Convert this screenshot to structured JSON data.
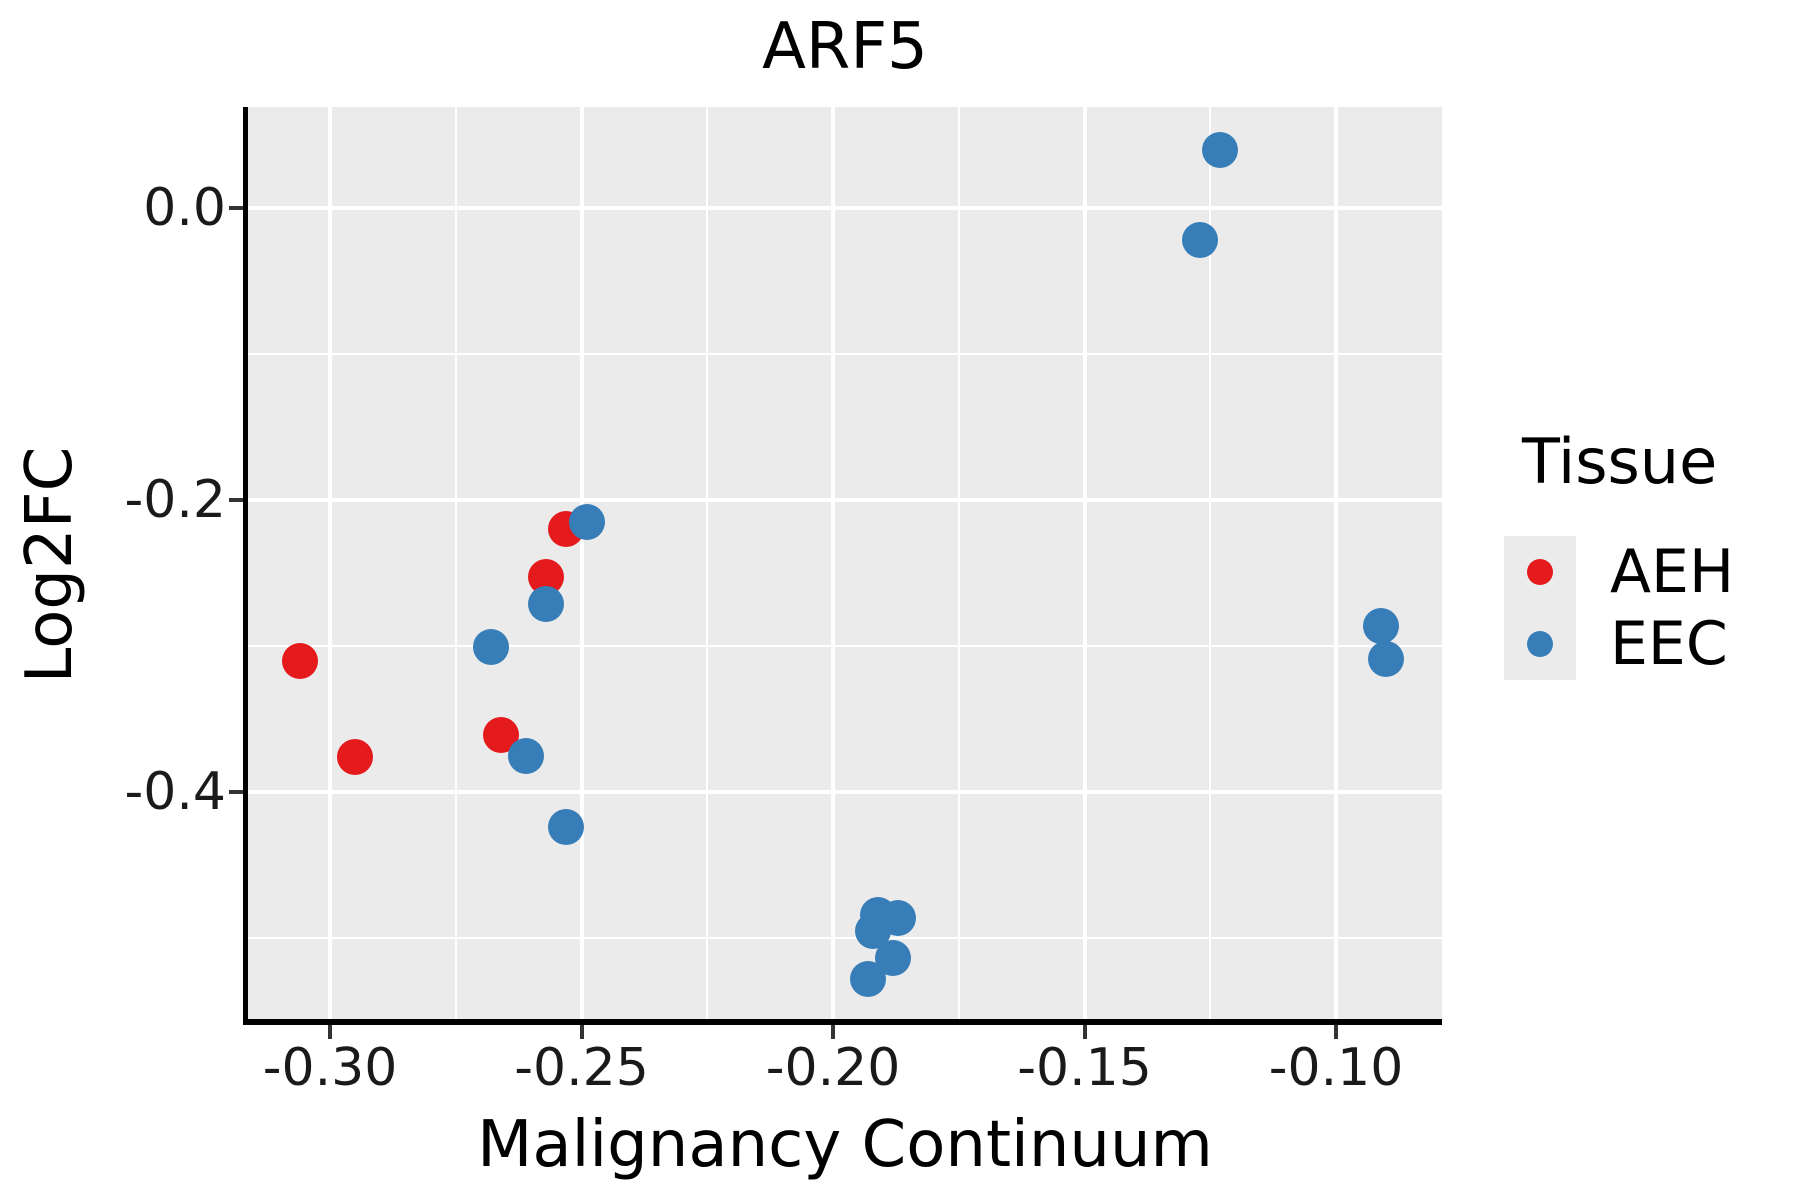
{
  "title": "ARF5",
  "axes": {
    "x": {
      "label": "Malignancy Continuum",
      "tick_labels": [
        "-0.30",
        "-0.25",
        "-0.20",
        "-0.15",
        "-0.10"
      ],
      "tick_values": [
        -0.3,
        -0.25,
        -0.2,
        -0.15,
        -0.1
      ],
      "minor_values": [
        -0.275,
        -0.225,
        -0.175,
        -0.125
      ],
      "range": [
        -0.316,
        -0.079
      ]
    },
    "y": {
      "label": "Log2FC",
      "tick_labels": [
        "0.0",
        "-0.2",
        "-0.4"
      ],
      "tick_values": [
        0.0,
        -0.2,
        -0.4
      ],
      "minor_values": [
        -0.1,
        -0.3,
        -0.5
      ],
      "range": [
        -0.558,
        0.069
      ]
    }
  },
  "legend": {
    "title": "Tissue",
    "position": "right",
    "entries": [
      {
        "label": "AEH",
        "color": "#e41a1c"
      },
      {
        "label": "EEC",
        "color": "#377eb8"
      }
    ]
  },
  "colors": {
    "plot_background": "#ebebeb",
    "gridline": "#ffffff",
    "spine": "#000000",
    "tick_mark": "#333333",
    "aeh_red": "#e41a1c",
    "eec_blue": "#377eb8"
  },
  "chart_data": {
    "type": "scatter",
    "title": "ARF5",
    "xlabel": "Malignancy Continuum",
    "ylabel": "Log2FC",
    "xlim": [
      -0.316,
      -0.079
    ],
    "ylim": [
      -0.558,
      0.069
    ],
    "grid": true,
    "legend_position": "right",
    "background": "#ebebeb",
    "series": [
      {
        "name": "AEH",
        "color": "#e41a1c",
        "points": [
          [
            -0.306,
            -0.31
          ],
          [
            -0.295,
            -0.376
          ],
          [
            -0.266,
            -0.361
          ],
          [
            -0.257,
            -0.253
          ],
          [
            -0.253,
            -0.22
          ]
        ]
      },
      {
        "name": "EEC",
        "color": "#377eb8",
        "points": [
          [
            -0.249,
            -0.215
          ],
          [
            -0.257,
            -0.271
          ],
          [
            -0.268,
            -0.301
          ],
          [
            -0.261,
            -0.375
          ],
          [
            -0.253,
            -0.424
          ],
          [
            -0.191,
            -0.484
          ],
          [
            -0.187,
            -0.486
          ],
          [
            -0.192,
            -0.495
          ],
          [
            -0.188,
            -0.514
          ],
          [
            -0.193,
            -0.528
          ],
          [
            -0.123,
            0.04
          ],
          [
            -0.127,
            -0.022
          ],
          [
            -0.091,
            -0.286
          ],
          [
            -0.09,
            -0.309
          ]
        ]
      }
    ]
  }
}
